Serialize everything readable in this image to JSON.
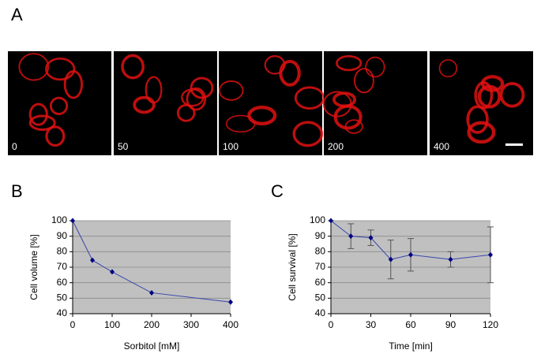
{
  "figure": {
    "panel_labels": [
      "A",
      "B",
      "C"
    ],
    "image_labels": [
      "0",
      "50",
      "100",
      "200",
      "400"
    ]
  },
  "chart_data": [
    {
      "type": "line",
      "x_label": "Sorbitol [mM]",
      "y_label": "Cell volume [%]",
      "x": [
        0,
        50,
        100,
        200,
        400
      ],
      "values": [
        100,
        74.5,
        67,
        53.5,
        47.5
      ],
      "color": "#000080",
      "line_color": "#3a46b0",
      "background": "#c0c0c0",
      "grid": true,
      "xlim": [
        0,
        400
      ],
      "xticks": [
        0,
        100,
        200,
        300,
        400
      ],
      "ylim": [
        40,
        100
      ],
      "yticks": [
        40,
        50,
        60,
        70,
        80,
        90,
        100
      ]
    },
    {
      "type": "line",
      "x_label": "Time [min]",
      "y_label": "Cell survival [%]",
      "x": [
        0,
        15,
        30,
        45,
        60,
        90,
        120
      ],
      "values": [
        100,
        90,
        89,
        75,
        78,
        75,
        78
      ],
      "errors": [
        0,
        8,
        5,
        12.5,
        10.5,
        5,
        18
      ],
      "error_color": "#555555",
      "color": "#000080",
      "line_color": "#3a46b0",
      "background": "#c0c0c0",
      "grid": true,
      "xlim": [
        0,
        120
      ],
      "xticks": [
        0,
        30,
        60,
        90,
        120
      ],
      "ylim": [
        40,
        100
      ],
      "yticks": [
        40,
        50,
        60,
        70,
        80,
        90,
        100
      ]
    }
  ]
}
